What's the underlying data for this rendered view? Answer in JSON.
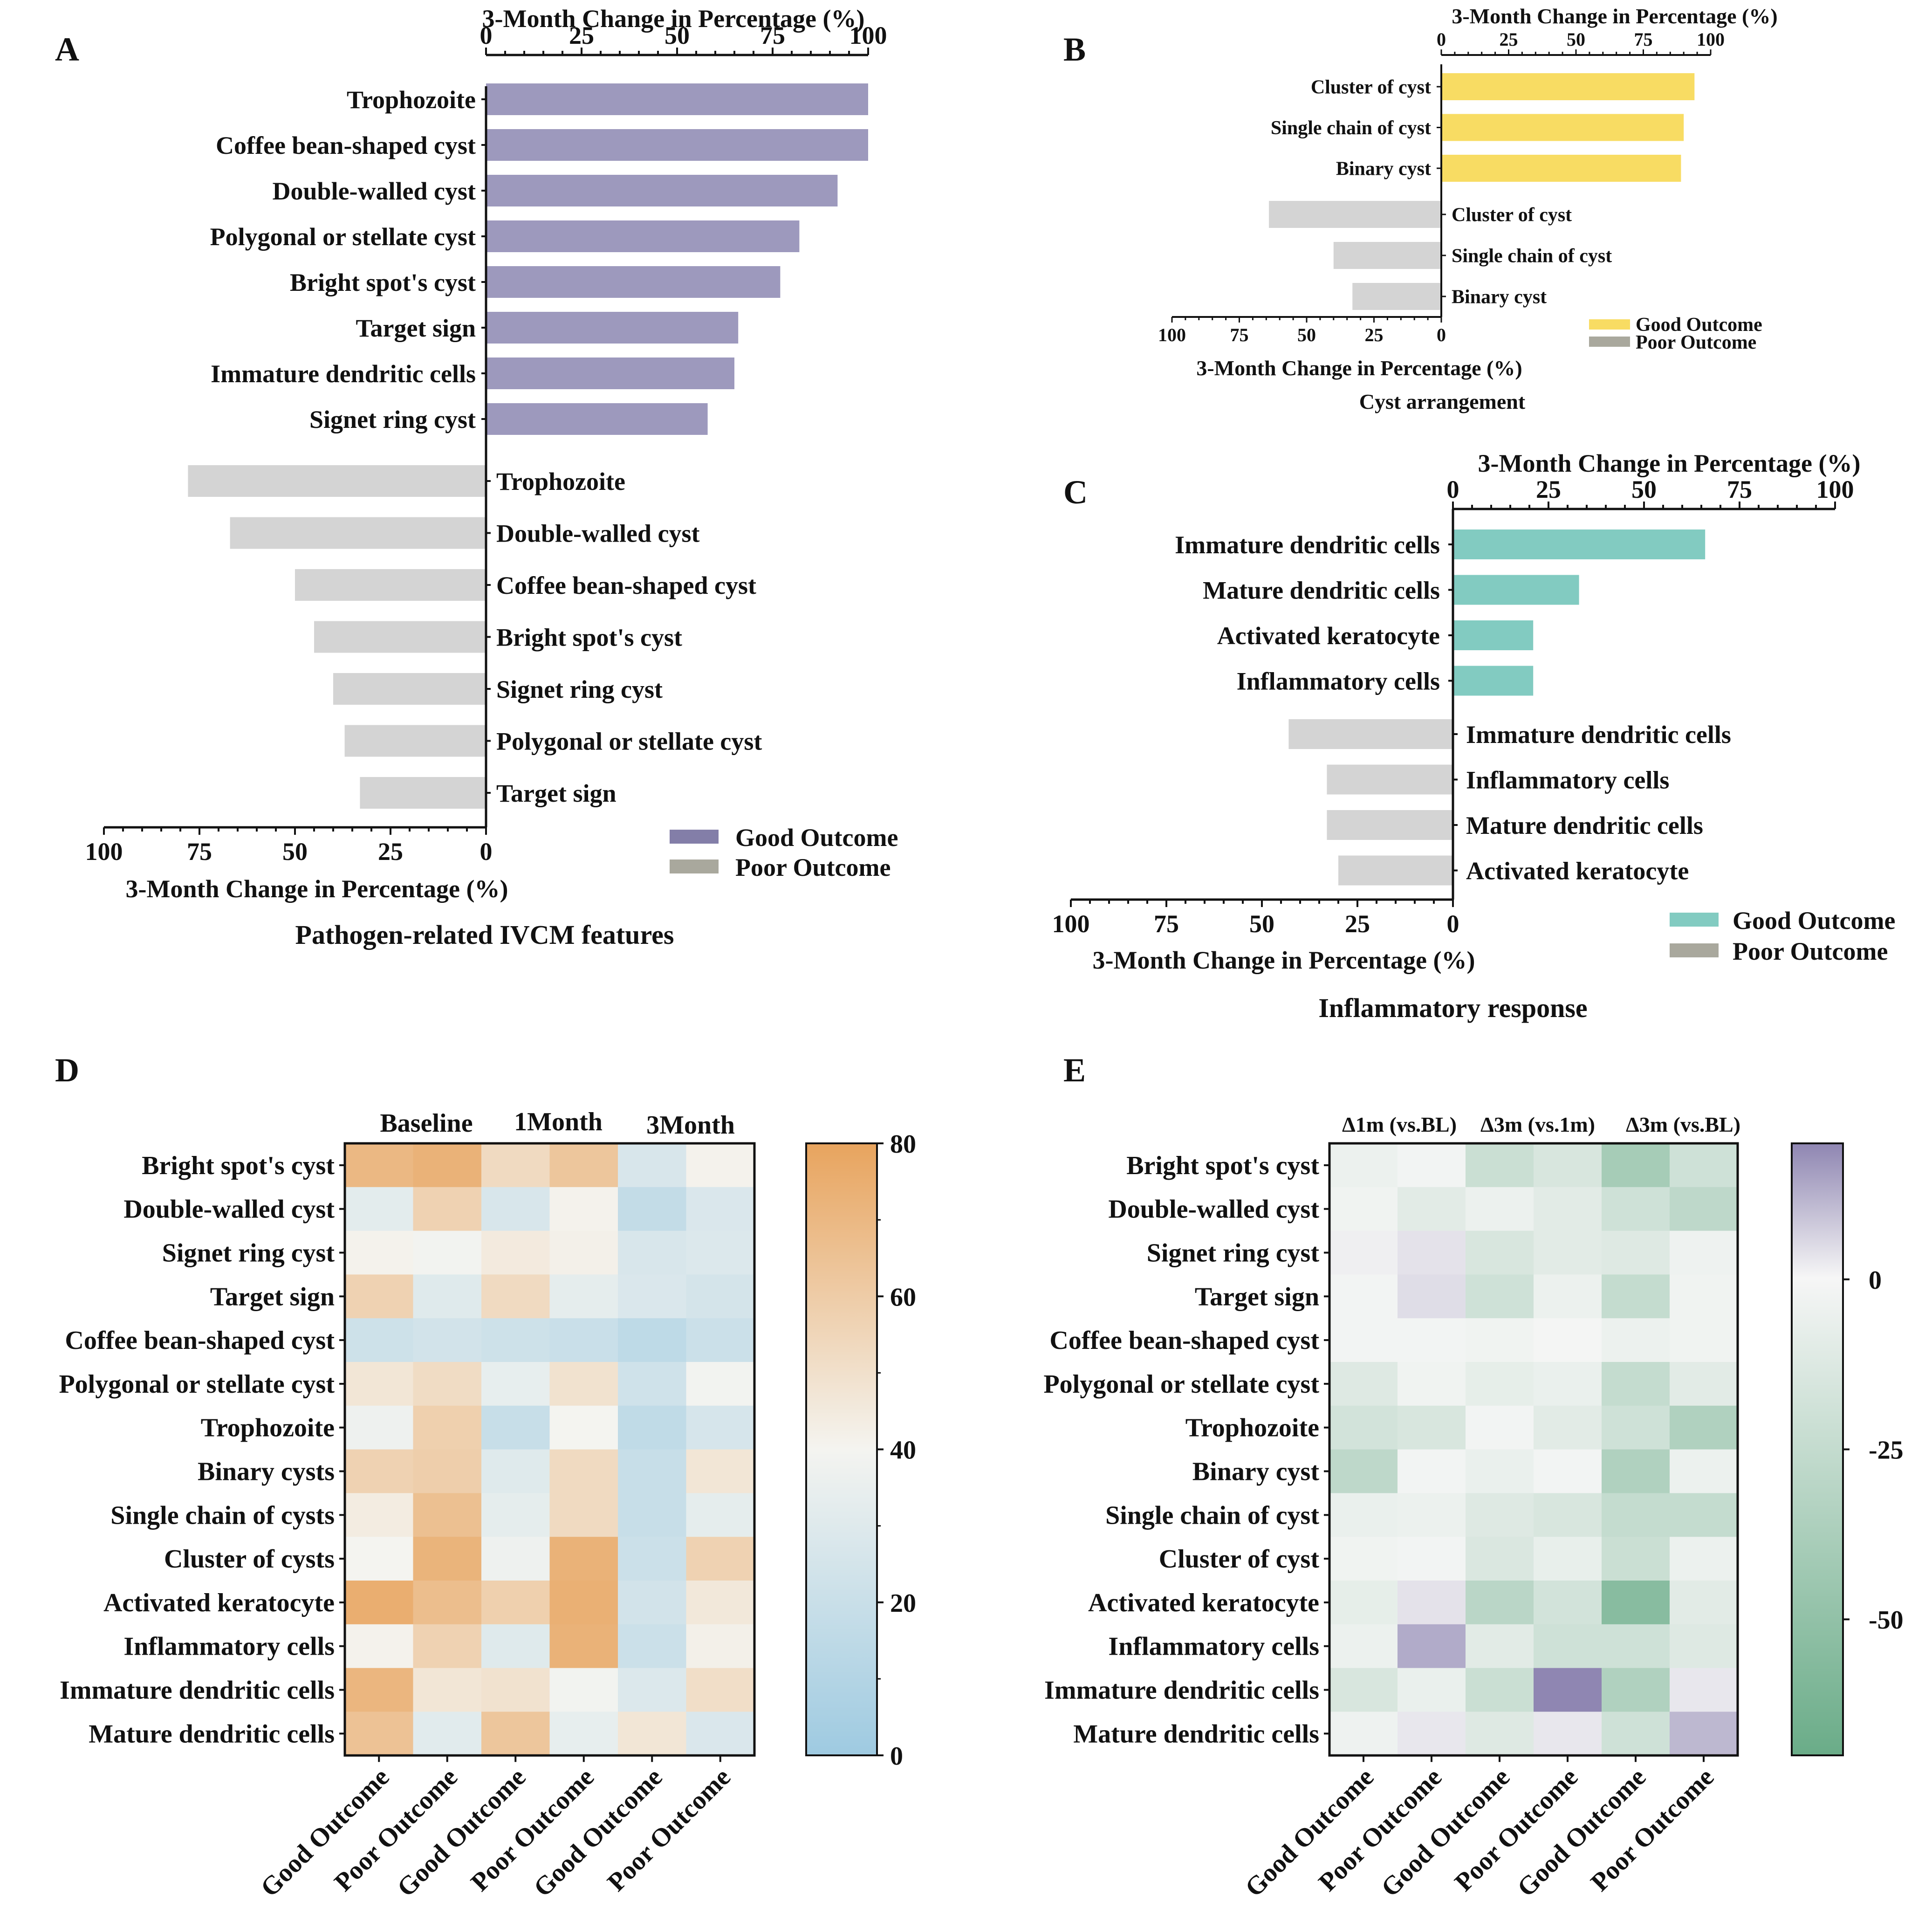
{
  "panels": {
    "A": {
      "letter": "A",
      "caption": "Pathogen-related IVCM features",
      "axis_label": "3-Month Change in Percentage (%)",
      "top_ticks": [
        "0",
        "25",
        "50",
        "75",
        "100"
      ],
      "bottom_ticks": [
        "100",
        "75",
        "50",
        "25",
        "0"
      ],
      "legend": {
        "good": "Good Outcome",
        "poor": "Poor Outcome"
      }
    },
    "B": {
      "letter": "B",
      "caption": "Cyst arrangement",
      "axis_label": "3-Month Change in Percentage (%)",
      "top_ticks": [
        "0",
        "25",
        "50",
        "75",
        "100"
      ],
      "bottom_ticks": [
        "100",
        "75",
        "50",
        "25",
        "0"
      ],
      "legend": {
        "good": "Good Outcome",
        "poor": "Poor Outcome"
      }
    },
    "C": {
      "letter": "C",
      "caption": "Inflammatory response",
      "axis_label": "3-Month Change in Percentage (%)",
      "top_ticks": [
        "0",
        "25",
        "50",
        "75",
        "100"
      ],
      "bottom_ticks": [
        "100",
        "75",
        "50",
        "25",
        "0"
      ],
      "legend": {
        "good": "Good Outcome",
        "poor": "Poor Outcome"
      }
    },
    "D": {
      "letter": "D",
      "groups": [
        "Baseline",
        "1Month",
        "3Month"
      ],
      "colorbar_ticks": [
        "0",
        "20",
        "40",
        "60",
        "80"
      ]
    },
    "E": {
      "letter": "E",
      "groups": [
        "Δ1m (vs.BL)",
        "Δ3m (vs.1m)",
        "Δ3m (vs.BL)"
      ],
      "colorbar_ticks": [
        "0",
        "-25",
        "-50"
      ]
    }
  },
  "colors": {
    "purple_bar": "#9d99bd",
    "purple_legend": "#837ea8",
    "gray_bar": "#d4d4d4",
    "gray_legend": "#a9a89d",
    "yellow_bar": "#f8dc63",
    "teal_bar": "#82cbc1",
    "heat_low": "#9ecae1",
    "heat_mid": "#f4f4f0",
    "heat_high": "#e8a45e",
    "diff_neg": "#6aac88",
    "diff_zero": "#f6f6f6",
    "diff_pos": "#8f86b2"
  },
  "chart_data": [
    {
      "panel": "A",
      "type": "bar",
      "orientation": "horizontal",
      "title": "Pathogen-related IVCM features",
      "xlabel": "3-Month Change in Percentage (%)",
      "xlim": [
        0,
        100
      ],
      "series": [
        {
          "name": "Good Outcome",
          "categories": [
            "Trophozoite",
            "Coffee bean-shaped cyst",
            "Double-walled cyst",
            "Polygonal or stellate cyst",
            "Bright spot's cyst",
            "Target sign",
            "Immature dendritic cells",
            "Signet ring cyst"
          ],
          "values": [
            100,
            100,
            92,
            82,
            77,
            66,
            65,
            58
          ]
        },
        {
          "name": "Poor Outcome",
          "categories": [
            "Trophozoite",
            "Double-walled cyst",
            "Coffee bean-shaped cyst",
            "Bright spot's cyst",
            "Signet ring cyst",
            "Polygonal or stellate cyst",
            "Target sign"
          ],
          "values": [
            78,
            67,
            50,
            45,
            40,
            37,
            33
          ]
        }
      ]
    },
    {
      "panel": "B",
      "type": "bar",
      "orientation": "horizontal",
      "title": "Cyst arrangement",
      "xlabel": "3-Month Change in Percentage (%)",
      "xlim": [
        0,
        100
      ],
      "series": [
        {
          "name": "Good Outcome",
          "categories": [
            "Cluster of cyst",
            "Single chain of cyst",
            "Binary cyst"
          ],
          "values": [
            94,
            90,
            89
          ]
        },
        {
          "name": "Poor Outcome",
          "categories": [
            "Cluster of cyst",
            "Single chain of cyst",
            "Binary cyst"
          ],
          "values": [
            64,
            40,
            33
          ]
        }
      ]
    },
    {
      "panel": "C",
      "type": "bar",
      "orientation": "horizontal",
      "title": "Inflammatory response",
      "xlabel": "3-Month Change in Percentage (%)",
      "xlim": [
        0,
        100
      ],
      "series": [
        {
          "name": "Good Outcome",
          "categories": [
            "Immature dendritic cells",
            "Mature dendritic cells",
            "Activated keratocyte",
            "Inflammatory cells"
          ],
          "values": [
            66,
            33,
            21,
            21
          ]
        },
        {
          "name": "Poor Outcome",
          "categories": [
            "Immature dendritic cells",
            "Inflammatory cells",
            "Mature dendritic cells",
            "Activated keratocyte"
          ],
          "values": [
            43,
            33,
            33,
            30
          ]
        }
      ]
    },
    {
      "panel": "D",
      "type": "heatmap",
      "rows": [
        "Bright spot's cyst",
        "Double-walled cyst",
        "Signet ring cyst",
        "Target sign",
        "Coffee bean-shaped cyst",
        "Polygonal or stellate cyst",
        "Trophozoite",
        "Binary cysts",
        "Single chain of cysts",
        "Cluster of cysts",
        "Activated keratocyte",
        "Inflammatory cells",
        "Immature dendritic cells",
        "Mature dendritic cells"
      ],
      "columns": [
        "Good Outcome",
        "Poor Outcome",
        "Good Outcome",
        "Poor Outcome",
        "Good Outcome",
        "Poor Outcome"
      ],
      "column_groups": [
        "Baseline",
        "1Month",
        "3Month"
      ],
      "range": [
        0,
        80
      ],
      "values": [
        [
          70,
          73,
          53,
          63,
          27,
          41
        ],
        [
          32,
          57,
          27,
          41,
          17,
          28
        ],
        [
          41,
          39,
          45,
          42,
          27,
          29
        ],
        [
          57,
          30,
          53,
          33,
          28,
          25
        ],
        [
          22,
          24,
          22,
          20,
          15,
          21
        ],
        [
          47,
          52,
          34,
          49,
          23,
          39
        ],
        [
          37,
          58,
          19,
          40,
          16,
          26
        ],
        [
          57,
          59,
          30,
          53,
          19,
          47
        ],
        [
          44,
          66,
          33,
          53,
          19,
          33
        ],
        [
          40,
          72,
          37,
          73,
          21,
          57
        ],
        [
          75,
          67,
          58,
          74,
          24,
          46
        ],
        [
          41,
          57,
          30,
          73,
          21,
          42
        ],
        [
          71,
          47,
          49,
          39,
          29,
          51
        ],
        [
          65,
          31,
          63,
          34,
          47,
          28
        ]
      ]
    },
    {
      "panel": "E",
      "type": "heatmap",
      "rows": [
        "Bright spot's cyst",
        "Double-walled cyst",
        "Signet ring cyst",
        "Target sign",
        "Coffee bean-shaped cyst",
        "Polygonal or stellate cyst",
        "Trophozoite",
        "Binary cyst",
        "Single chain of cyst",
        "Cluster of cyst",
        "Activated keratocyte",
        "Inflammatory cells",
        "Immature dendritic cells",
        "Mature dendritic cells"
      ],
      "columns": [
        "Good Outcome",
        "Poor Outcome",
        "Good Outcome",
        "Poor Outcome",
        "Good Outcome",
        "Poor Outcome"
      ],
      "column_groups": [
        "Δ1m (vs.BL)",
        "Δ3m (vs.1m)",
        "Δ3m (vs.BL)"
      ],
      "range": [
        -70,
        20
      ],
      "values": [
        [
          -5,
          -2,
          -22,
          -15,
          -40,
          -20
        ],
        [
          -3,
          -10,
          -5,
          -10,
          -20,
          -28
        ],
        [
          3,
          8,
          -15,
          -10,
          -12,
          -4
        ],
        [
          -2,
          10,
          -20,
          -5,
          -25,
          -3
        ],
        [
          -2,
          -2,
          -3,
          -1,
          -5,
          -3
        ],
        [
          -12,
          -3,
          -8,
          -6,
          -25,
          -10
        ],
        [
          -18,
          -15,
          -2,
          -10,
          -20,
          -35
        ],
        [
          -28,
          -2,
          -6,
          -2,
          -35,
          -5
        ],
        [
          -6,
          -5,
          -12,
          -15,
          -25,
          -25
        ],
        [
          -3,
          -2,
          -14,
          -7,
          -22,
          -5
        ],
        [
          -8,
          8,
          -30,
          -18,
          -55,
          -10
        ],
        [
          -5,
          30,
          -10,
          -20,
          -20,
          -12
        ],
        [
          -15,
          -6,
          -22,
          45,
          -35,
          6
        ],
        [
          -4,
          6,
          -12,
          6,
          -20,
          25
        ]
      ]
    }
  ]
}
